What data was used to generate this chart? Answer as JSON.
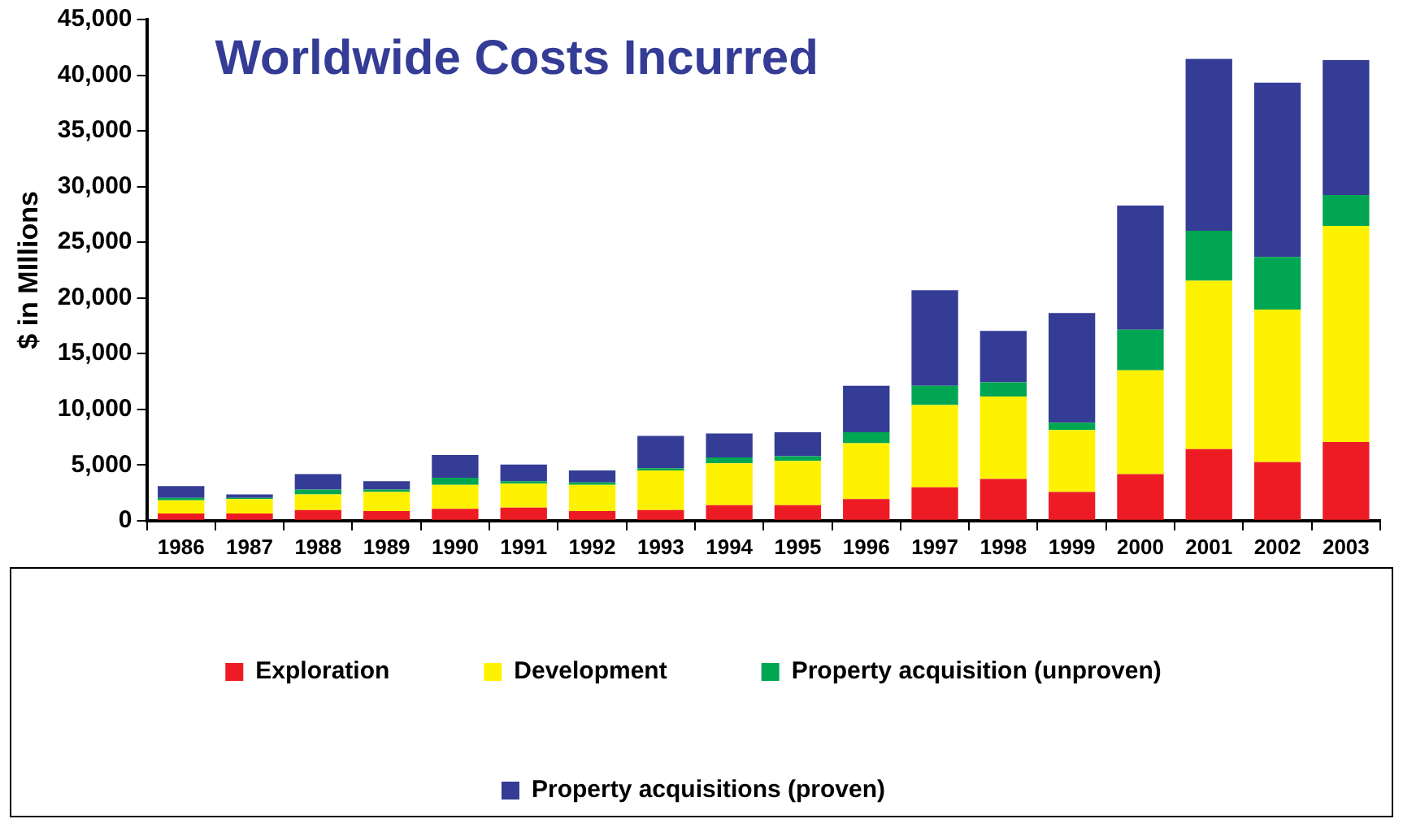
{
  "chart_data": {
    "type": "bar",
    "title": "Worldwide Costs Incurred",
    "ylabel": "$ in MIllions",
    "stacked": true,
    "grid": false,
    "legend": "bottom",
    "categories": [
      "1986",
      "1987",
      "1988",
      "1989",
      "1990",
      "1991",
      "1992",
      "1993",
      "1994",
      "1995",
      "1996",
      "1997",
      "1998",
      "1999",
      "2000",
      "2001",
      "2002",
      "2003"
    ],
    "series": [
      {
        "name": "Exploration",
        "color": "#ed1c24",
        "values": [
          640,
          640,
          960,
          860,
          1070,
          1180,
          860,
          960,
          1390,
          1390,
          1930,
          3000,
          3750,
          2570,
          4180,
          6430,
          5250,
          7070
        ]
      },
      {
        "name": "Development",
        "color": "#fff200",
        "values": [
          1180,
          1290,
          1400,
          1710,
          2140,
          2140,
          2350,
          3540,
          3750,
          3970,
          5030,
          7390,
          7390,
          5570,
          9320,
          15110,
          13710,
          19390
        ]
      },
      {
        "name": "Property acquisition (unproven)",
        "color": "#00a651",
        "values": [
          220,
          110,
          430,
          220,
          650,
          220,
          220,
          210,
          540,
          430,
          970,
          1720,
          1290,
          650,
          3640,
          4500,
          4720,
          2790
        ]
      },
      {
        "name": "Property acquisitions (proven)",
        "color": "#343c96",
        "values": [
          1060,
          320,
          1390,
          750,
          2030,
          1500,
          1070,
          2900,
          2140,
          2140,
          4180,
          8570,
          4610,
          9850,
          11150,
          15420,
          15640,
          12110
        ]
      }
    ],
    "ylim": [
      0,
      45000
    ],
    "yticks": [
      {
        "value": 0,
        "label": "0"
      },
      {
        "value": 5000,
        "label": "5,000"
      },
      {
        "value": 10000,
        "label": "10,000"
      },
      {
        "value": 15000,
        "label": "15,000"
      },
      {
        "value": 20000,
        "label": "20,000"
      },
      {
        "value": 25000,
        "label": "25,000"
      },
      {
        "value": 30000,
        "label": "30,000"
      },
      {
        "value": 35000,
        "label": "35,000"
      },
      {
        "value": 40000,
        "label": "40,000"
      },
      {
        "value": 45000,
        "label": "45,000"
      }
    ]
  }
}
